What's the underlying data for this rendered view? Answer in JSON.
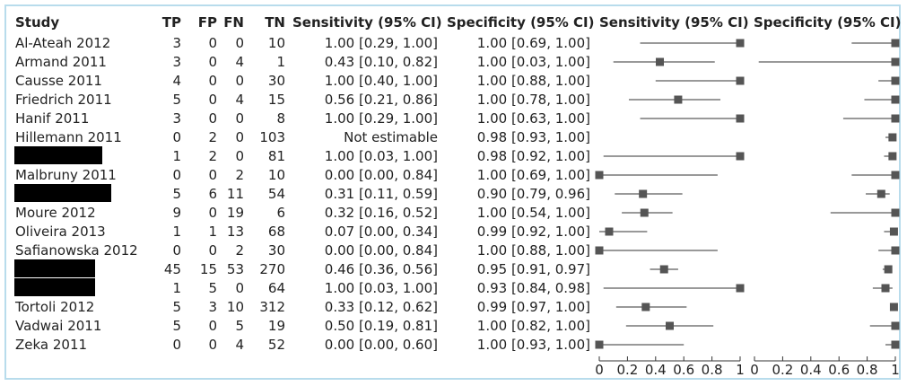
{
  "columns": {
    "study": "Study",
    "tp": "TP",
    "fp": "FP",
    "fn": "FN",
    "tn": "TN",
    "sens_ci": "Sensitivity (95% CI)",
    "spec_ci": "Specificity (95% CI)",
    "sens_plot": "Sensitivity (95% CI)",
    "spec_plot": "Specificity (95% CI)"
  },
  "rows": [
    {
      "study": "Al-Ateah 2012",
      "redacted": false,
      "tp": "3",
      "fp": "0",
      "fn": "0",
      "tn": "10",
      "sens": "1.00 [0.29, 1.00]",
      "spec": "1.00 [0.69, 1.00]"
    },
    {
      "study": "Armand 2011",
      "redacted": false,
      "tp": "3",
      "fp": "0",
      "fn": "4",
      "tn": "1",
      "sens": "0.43 [0.10, 0.82]",
      "spec": "1.00 [0.03, 1.00]"
    },
    {
      "study": "Causse 2011",
      "redacted": false,
      "tp": "4",
      "fp": "0",
      "fn": "0",
      "tn": "30",
      "sens": "1.00 [0.40, 1.00]",
      "spec": "1.00 [0.88, 1.00]"
    },
    {
      "study": "Friedrich 2011",
      "redacted": false,
      "tp": "5",
      "fp": "0",
      "fn": "4",
      "tn": "15",
      "sens": "0.56 [0.21, 0.86]",
      "spec": "1.00 [0.78, 1.00]"
    },
    {
      "study": "Hanif 2011",
      "redacted": false,
      "tp": "3",
      "fp": "0",
      "fn": "0",
      "tn": "8",
      "sens": "1.00 [0.29, 1.00]",
      "spec": "1.00 [0.63, 1.00]"
    },
    {
      "study": "Hillemann 2011",
      "redacted": false,
      "tp": "0",
      "fp": "2",
      "fn": "0",
      "tn": "103",
      "sens": "Not estimable",
      "spec": "0.98 [0.93, 1.00]"
    },
    {
      "study": "",
      "redacted": true,
      "tp": "1",
      "fp": "2",
      "fn": "0",
      "tn": "81",
      "sens": "1.00 [0.03, 1.00]",
      "spec": "0.98 [0.92, 1.00]"
    },
    {
      "study": "Malbruny 2011",
      "redacted": false,
      "tp": "0",
      "fp": "0",
      "fn": "2",
      "tn": "10",
      "sens": "0.00 [0.00, 0.84]",
      "spec": "1.00 [0.69, 1.00]"
    },
    {
      "study": "",
      "redacted": true,
      "tp": "5",
      "fp": "6",
      "fn": "11",
      "tn": "54",
      "sens": "0.31 [0.11, 0.59]",
      "spec": "0.90 [0.79, 0.96]"
    },
    {
      "study": "Moure 2012",
      "redacted": false,
      "tp": "9",
      "fp": "0",
      "fn": "19",
      "tn": "6",
      "sens": "0.32 [0.16, 0.52]",
      "spec": "1.00 [0.54, 1.00]"
    },
    {
      "study": "Oliveira 2013",
      "redacted": false,
      "tp": "1",
      "fp": "1",
      "fn": "13",
      "tn": "68",
      "sens": "0.07 [0.00, 0.34]",
      "spec": "0.99 [0.92, 1.00]"
    },
    {
      "study": "Safianowska 2012",
      "redacted": false,
      "tp": "0",
      "fp": "0",
      "fn": "2",
      "tn": "30",
      "sens": "0.00 [0.00, 0.84]",
      "spec": "1.00 [0.88, 1.00]"
    },
    {
      "study": "",
      "redacted": true,
      "tp": "45",
      "fp": "15",
      "fn": "53",
      "tn": "270",
      "sens": "0.46 [0.36, 0.56]",
      "spec": "0.95 [0.91, 0.97]"
    },
    {
      "study": "",
      "redacted": true,
      "tp": "1",
      "fp": "5",
      "fn": "0",
      "tn": "64",
      "sens": "1.00 [0.03, 1.00]",
      "spec": "0.93 [0.84, 0.98]"
    },
    {
      "study": "Tortoli 2012",
      "redacted": false,
      "tp": "5",
      "fp": "3",
      "fn": "10",
      "tn": "312",
      "sens": "0.33 [0.12, 0.62]",
      "spec": "0.99 [0.97, 1.00]"
    },
    {
      "study": "Vadwai 2011",
      "redacted": false,
      "tp": "5",
      "fp": "0",
      "fn": "5",
      "tn": "19",
      "sens": "0.50 [0.19, 0.81]",
      "spec": "1.00 [0.82, 1.00]"
    },
    {
      "study": "Zeka 2011",
      "redacted": false,
      "tp": "0",
      "fp": "0",
      "fn": "4",
      "tn": "52",
      "sens": "0.00 [0.00, 0.60]",
      "spec": "1.00 [0.93, 1.00]"
    }
  ],
  "chart_data": {
    "type": "forest",
    "xlim": [
      0,
      1
    ],
    "ticks": [
      "0",
      "0.2",
      "0.4",
      "0.6",
      "0.8",
      "1"
    ],
    "panels": [
      {
        "name": "Sensitivity (95% CI)",
        "points": [
          {
            "est": 1.0,
            "lo": 0.29,
            "hi": 1.0
          },
          {
            "est": 0.43,
            "lo": 0.1,
            "hi": 0.82
          },
          {
            "est": 1.0,
            "lo": 0.4,
            "hi": 1.0
          },
          {
            "est": 0.56,
            "lo": 0.21,
            "hi": 0.86
          },
          {
            "est": 1.0,
            "lo": 0.29,
            "hi": 1.0
          },
          null,
          {
            "est": 1.0,
            "lo": 0.03,
            "hi": 1.0
          },
          {
            "est": 0.0,
            "lo": 0.0,
            "hi": 0.84
          },
          {
            "est": 0.31,
            "lo": 0.11,
            "hi": 0.59
          },
          {
            "est": 0.32,
            "lo": 0.16,
            "hi": 0.52
          },
          {
            "est": 0.07,
            "lo": 0.0,
            "hi": 0.34
          },
          {
            "est": 0.0,
            "lo": 0.0,
            "hi": 0.84
          },
          {
            "est": 0.46,
            "lo": 0.36,
            "hi": 0.56
          },
          {
            "est": 1.0,
            "lo": 0.03,
            "hi": 1.0
          },
          {
            "est": 0.33,
            "lo": 0.12,
            "hi": 0.62
          },
          {
            "est": 0.5,
            "lo": 0.19,
            "hi": 0.81
          },
          {
            "est": 0.0,
            "lo": 0.0,
            "hi": 0.6
          }
        ]
      },
      {
        "name": "Specificity (95% CI)",
        "points": [
          {
            "est": 1.0,
            "lo": 0.69,
            "hi": 1.0
          },
          {
            "est": 1.0,
            "lo": 0.03,
            "hi": 1.0
          },
          {
            "est": 1.0,
            "lo": 0.88,
            "hi": 1.0
          },
          {
            "est": 1.0,
            "lo": 0.78,
            "hi": 1.0
          },
          {
            "est": 1.0,
            "lo": 0.63,
            "hi": 1.0
          },
          {
            "est": 0.98,
            "lo": 0.93,
            "hi": 1.0
          },
          {
            "est": 0.98,
            "lo": 0.92,
            "hi": 1.0
          },
          {
            "est": 1.0,
            "lo": 0.69,
            "hi": 1.0
          },
          {
            "est": 0.9,
            "lo": 0.79,
            "hi": 0.96
          },
          {
            "est": 1.0,
            "lo": 0.54,
            "hi": 1.0
          },
          {
            "est": 0.99,
            "lo": 0.92,
            "hi": 1.0
          },
          {
            "est": 1.0,
            "lo": 0.88,
            "hi": 1.0
          },
          {
            "est": 0.95,
            "lo": 0.91,
            "hi": 0.97
          },
          {
            "est": 0.93,
            "lo": 0.84,
            "hi": 0.98
          },
          {
            "est": 0.99,
            "lo": 0.97,
            "hi": 1.0
          },
          {
            "est": 1.0,
            "lo": 0.82,
            "hi": 1.0
          },
          {
            "est": 1.0,
            "lo": 0.93,
            "hi": 1.0
          }
        ]
      }
    ]
  }
}
